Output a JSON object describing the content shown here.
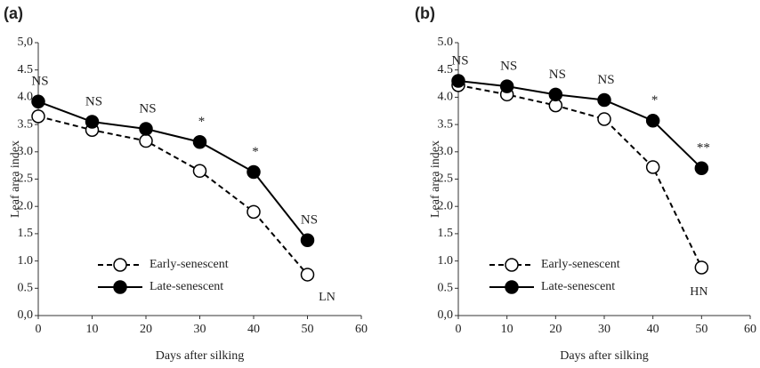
{
  "chart_data": [
    {
      "type": "line",
      "panel_label": "(a)",
      "xlabel": "Days after silking",
      "ylabel": "Leaf area index",
      "x": [
        0,
        10,
        20,
        30,
        40,
        50
      ],
      "series": [
        {
          "name": "Early-senescent",
          "color": "#000000",
          "marker": "open",
          "linestyle": "dashed",
          "values": [
            3.65,
            3.4,
            3.2,
            2.65,
            1.9,
            0.75
          ]
        },
        {
          "name": "Late-senescent",
          "color": "#000000",
          "marker": "filled",
          "linestyle": "solid",
          "values": [
            3.92,
            3.55,
            3.42,
            3.18,
            2.63,
            1.38
          ]
        }
      ],
      "annotations": [
        "NS",
        "NS",
        "NS",
        "*",
        "*",
        "NS"
      ],
      "corner_text": "LN",
      "xlim": [
        0,
        60
      ],
      "xticks": [
        0,
        10,
        20,
        30,
        40,
        50,
        60
      ],
      "ylim": [
        0,
        5
      ],
      "yticks": [
        {
          "value": 0,
          "label": "0,0"
        },
        0.5,
        {
          "value": 1,
          "label": "1.0"
        },
        1.5,
        {
          "value": 2,
          "label": "2.0"
        },
        2.5,
        {
          "value": 3,
          "label": "3.0"
        },
        3.5,
        {
          "value": 4,
          "label": "4.0"
        },
        4.5,
        {
          "value": 5,
          "label": "5,0"
        }
      ]
    },
    {
      "type": "line",
      "panel_label": "(b)",
      "xlabel": "Days after silking",
      "ylabel": "Leaf area index",
      "x": [
        0,
        10,
        20,
        30,
        40,
        50
      ],
      "series": [
        {
          "name": "Early-senescent",
          "color": "#000000",
          "marker": "open",
          "linestyle": "dashed",
          "values": [
            4.22,
            4.05,
            3.85,
            3.6,
            2.72,
            0.88
          ]
        },
        {
          "name": "Late-senescent",
          "color": "#000000",
          "marker": "filled",
          "linestyle": "solid",
          "values": [
            4.3,
            4.2,
            4.05,
            3.95,
            3.57,
            2.7
          ]
        }
      ],
      "annotations": [
        "NS",
        "NS",
        "NS",
        "NS",
        "*",
        "**"
      ],
      "corner_text": "HN",
      "xlim": [
        0,
        60
      ],
      "xticks": [
        0,
        10,
        20,
        30,
        40,
        50,
        60
      ],
      "ylim": [
        0,
        5
      ],
      "yticks": [
        {
          "value": 0,
          "label": "0,0"
        },
        0.5,
        {
          "value": 1,
          "label": "1.0"
        },
        1.5,
        {
          "value": 2,
          "label": "2.0"
        },
        2.5,
        {
          "value": 3,
          "label": "3.0"
        },
        3.5,
        {
          "value": 4,
          "label": "4.0"
        },
        4.5,
        {
          "value": 5,
          "label": "5.0"
        }
      ]
    }
  ]
}
